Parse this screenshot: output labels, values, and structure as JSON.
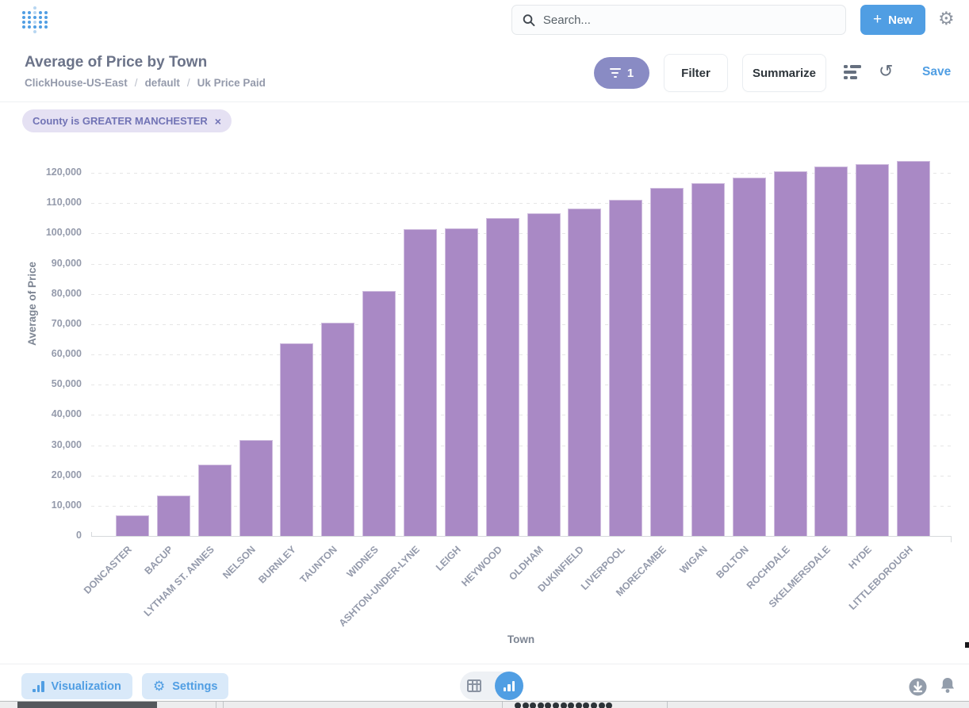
{
  "header": {
    "search_placeholder": "Search...",
    "new_label": "New",
    "plus": "+"
  },
  "question": {
    "title": "Average of Price by Town",
    "breadcrumb": [
      "ClickHouse-US-East",
      "default",
      "Uk Price Paid"
    ],
    "breadcrumb_separator": "/",
    "filter_count": "1",
    "filter_label": "Filter",
    "summarize_label": "Summarize",
    "save_label": "Save"
  },
  "filters": {
    "chip_label": "County is GREATER MANCHESTER",
    "chip_close": "×"
  },
  "footer": {
    "visualization_label": "Visualization",
    "settings_label": "Settings"
  },
  "colors": {
    "accent_blue": "#509ee3",
    "bar_purple": "#a989c5",
    "pill_purple": "#898bc4",
    "chip_bg": "#e5e1f3",
    "chip_text": "#7173b5",
    "tick_gray": "#949aab"
  },
  "chart_data": {
    "type": "bar",
    "title": "Average of Price by Town",
    "xlabel": "Town",
    "ylabel": "Average of Price",
    "ylim": [
      0,
      125000
    ],
    "y_ticks": [
      0,
      10000,
      20000,
      30000,
      40000,
      50000,
      60000,
      70000,
      80000,
      90000,
      100000,
      110000,
      120000
    ],
    "grid": "horizontal-dashed",
    "legend": "none",
    "categories": [
      "DONCASTER",
      "BACUP",
      "LYTHAM ST. ANNES",
      "NELSON",
      "BURNLEY",
      "TAUNTON",
      "WIDNES",
      "ASHTON-UNDER-LYNE",
      "LEIGH",
      "HEYWOOD",
      "OLDHAM",
      "DUKINFIELD",
      "LIVERPOOL",
      "MORECAMBE",
      "WIGAN",
      "BOLTON",
      "ROCHDALE",
      "SKELMERSDALE",
      "HYDE",
      "LITTLEBOROUGH"
    ],
    "values": [
      6900,
      13300,
      23700,
      31700,
      63600,
      70400,
      81000,
      101300,
      101700,
      105100,
      106700,
      108200,
      111000,
      114900,
      116700,
      118400,
      120400,
      122000,
      122900,
      124000
    ]
  }
}
